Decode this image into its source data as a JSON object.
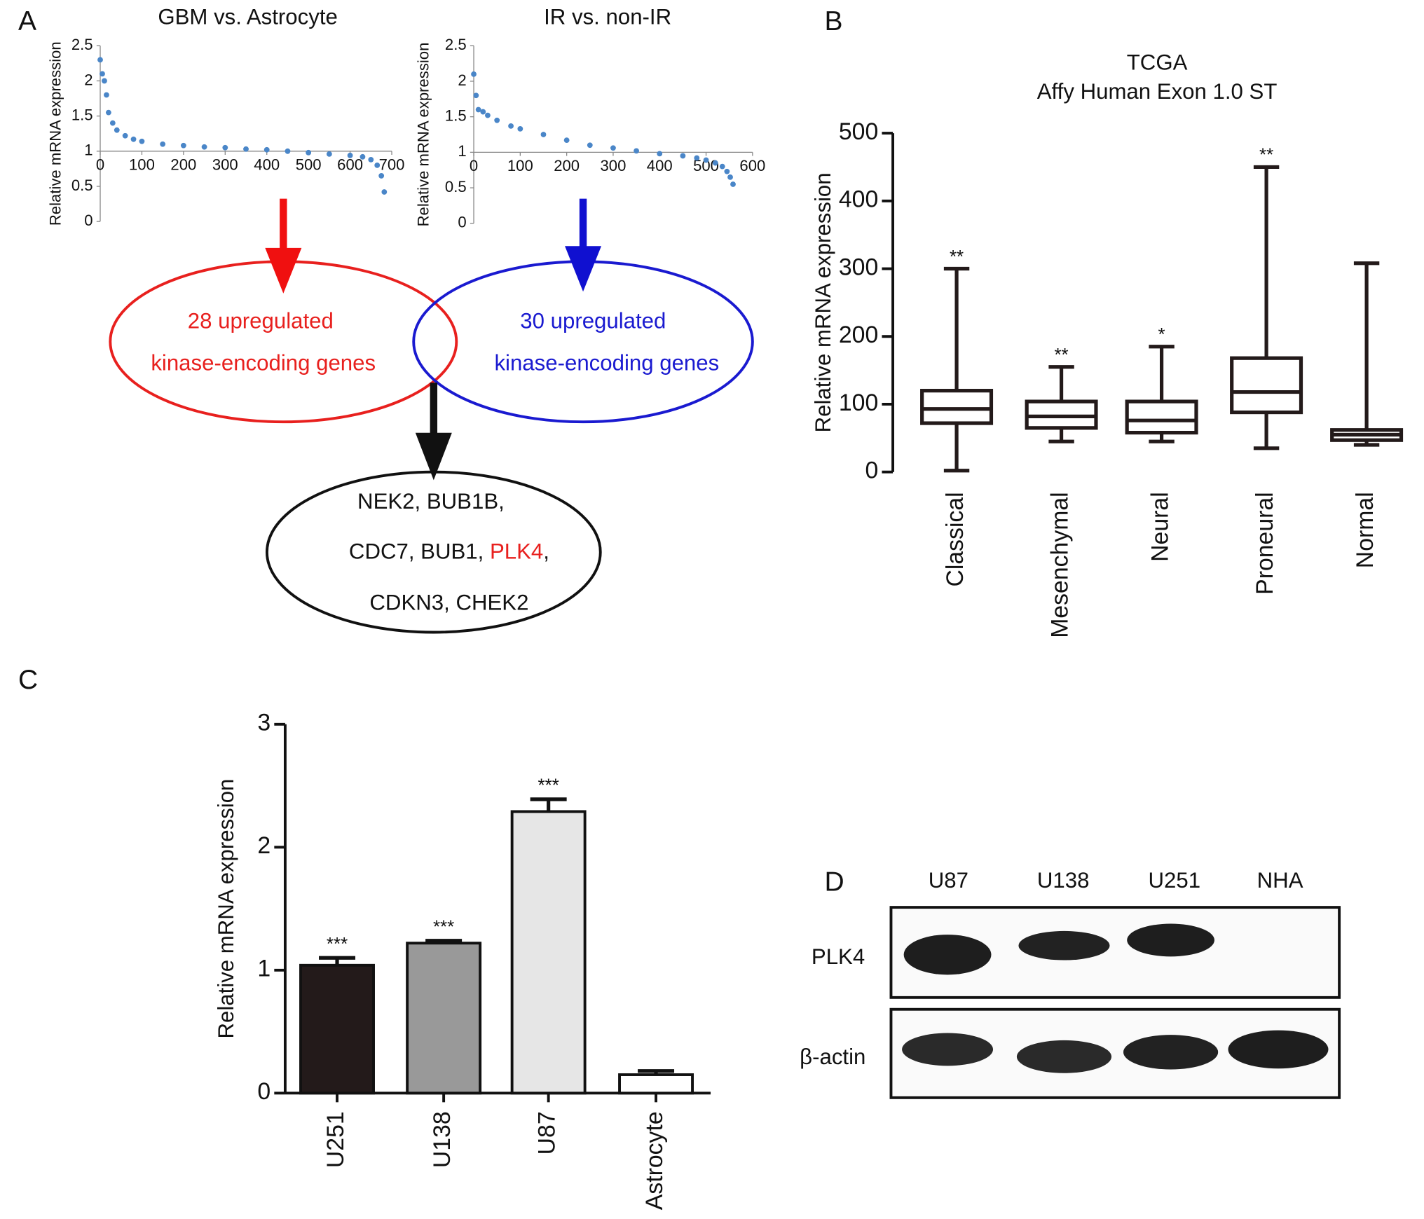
{
  "panels": [
    "A",
    "B",
    "C",
    "D"
  ],
  "chart_data": [
    {
      "type": "scatter",
      "title": "GBM vs. Astrocyte",
      "y_label": "Relative mRNA expression",
      "color": "#4a86c8",
      "x": [
        0,
        5,
        10,
        15,
        20,
        30,
        40,
        60,
        80,
        100,
        150,
        200,
        250,
        300,
        350,
        400,
        450,
        500,
        550,
        600,
        630,
        650,
        665,
        675,
        682
      ],
      "values": [
        2.3,
        2.1,
        2.0,
        1.8,
        1.55,
        1.4,
        1.3,
        1.22,
        1.17,
        1.14,
        1.1,
        1.08,
        1.06,
        1.05,
        1.03,
        1.02,
        1.0,
        0.98,
        0.96,
        0.94,
        0.92,
        0.88,
        0.8,
        0.65,
        0.42
      ],
      "xlim": [
        0,
        700
      ],
      "ylim": [
        0,
        2.5
      ],
      "xticks": [
        0,
        100,
        200,
        300,
        400,
        500,
        600,
        700
      ],
      "yticks": [
        0,
        0.5,
        1,
        1.5,
        2,
        2.5
      ]
    },
    {
      "type": "scatter",
      "title": "IR vs. non-IR",
      "y_label": "Relative mRNA expression",
      "color": "#4a86c8",
      "x": [
        0,
        5,
        10,
        20,
        30,
        50,
        80,
        100,
        150,
        200,
        250,
        300,
        350,
        400,
        450,
        480,
        500,
        520,
        535,
        545,
        552,
        558
      ],
      "values": [
        2.1,
        1.8,
        1.6,
        1.57,
        1.52,
        1.45,
        1.37,
        1.33,
        1.25,
        1.17,
        1.1,
        1.06,
        1.02,
        0.98,
        0.95,
        0.92,
        0.89,
        0.85,
        0.8,
        0.73,
        0.65,
        0.55
      ],
      "xlim": [
        0,
        600
      ],
      "ylim": [
        0,
        2.5
      ],
      "xticks": [
        0,
        100,
        200,
        300,
        400,
        500,
        600
      ],
      "yticks": [
        0,
        0.5,
        1,
        1.5,
        2,
        2.5
      ]
    },
    {
      "type": "box",
      "title": "TCGA",
      "subtitle": "Affy Human Exon 1.0 ST",
      "y_label": "Relative mRNA expression",
      "color": "#231a1a",
      "categories": [
        "Classical",
        "Mesenchymal",
        "Neural",
        "Proneural",
        "Normal"
      ],
      "whisker_low": [
        2,
        45,
        45,
        35,
        40
      ],
      "q1": [
        72,
        65,
        58,
        88,
        47
      ],
      "median": [
        93,
        82,
        76,
        118,
        55
      ],
      "q3": [
        120,
        104,
        104,
        168,
        62
      ],
      "whisker_high": [
        300,
        155,
        185,
        450,
        308
      ],
      "annotations": [
        "**",
        "**",
        "*",
        "**",
        null
      ],
      "ylim": [
        0,
        500
      ],
      "yticks": [
        0,
        100,
        200,
        300,
        400,
        500
      ]
    },
    {
      "type": "bar",
      "y_label": "Relative mRNA expression",
      "categories": [
        "U251",
        "U138",
        "U87",
        "Astrocyte"
      ],
      "values": [
        1.04,
        1.22,
        2.29,
        0.15
      ],
      "errors": [
        0.06,
        0.02,
        0.1,
        0.03
      ],
      "colors": [
        "#231a1a",
        "#999999",
        "#e6e6e6",
        "#ffffff"
      ],
      "annotations": [
        "***",
        "***",
        "***",
        null
      ],
      "ylim": [
        0,
        3
      ],
      "yticks": [
        0,
        1,
        2,
        3
      ]
    }
  ],
  "venn": {
    "left": [
      "28 upregulated",
      "kinase-encoding genes"
    ],
    "right": [
      "30 upregulated",
      "kinase-encoding genes"
    ],
    "center": [
      [
        "NEK2, BUB1B,"
      ],
      [
        "CDC7, BUB1, ",
        "PLK4",
        ","
      ],
      [
        "CDKN3, CHEK2"
      ]
    ]
  },
  "blot": {
    "lanes": [
      "U87",
      "U138",
      "U251",
      "NHA"
    ],
    "rows": [
      "PLK4",
      "β-actin"
    ]
  }
}
